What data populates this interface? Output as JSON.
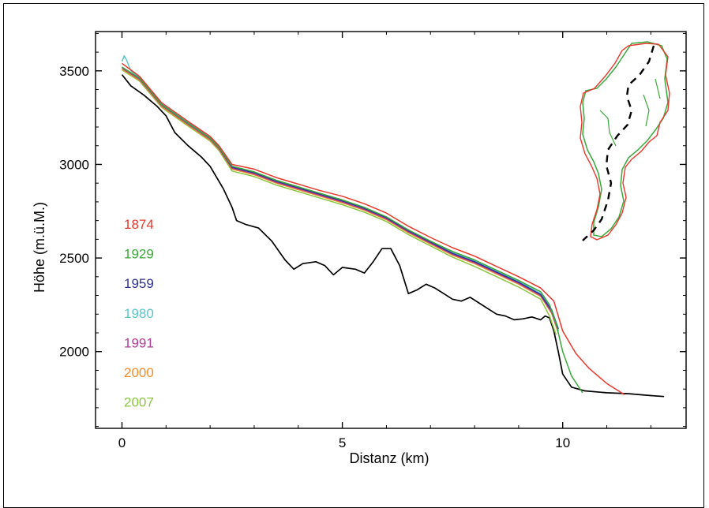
{
  "chart_data": {
    "type": "line",
    "title": "",
    "xlabel": "Distanz  (km)",
    "ylabel": "Höhe  (m.ü.M.)",
    "xlim": [
      -0.6,
      12.8
    ],
    "ylim": [
      1590,
      3710
    ],
    "xticks": [
      0,
      5,
      10
    ],
    "yticks": [
      2000,
      2500,
      3000,
      3500
    ],
    "grid": false,
    "legend_placement": "left",
    "series": [
      {
        "name": "1874",
        "color": "#e8372b",
        "x": [
          0,
          0.4,
          0.9,
          1.5,
          2.0,
          2.2,
          2.5,
          3.0,
          3.5,
          4.0,
          4.5,
          5.0,
          5.5,
          6.0,
          6.5,
          7.0,
          7.5,
          8.0,
          8.5,
          9.0,
          9.5,
          9.8,
          10.0,
          10.3,
          10.6,
          11.0,
          11.4
        ],
        "y": [
          3540,
          3470,
          3330,
          3230,
          3150,
          3100,
          3000,
          2975,
          2930,
          2895,
          2860,
          2830,
          2790,
          2740,
          2670,
          2610,
          2555,
          2510,
          2455,
          2400,
          2340,
          2270,
          2110,
          1990,
          1910,
          1830,
          1770
        ]
      },
      {
        "name": "1929",
        "color": "#3aa83a",
        "x": [
          0,
          0.4,
          0.9,
          1.5,
          2.0,
          2.2,
          2.5,
          3.0,
          3.5,
          4.0,
          4.5,
          5.0,
          5.5,
          6.0,
          6.5,
          7.0,
          7.5,
          8.0,
          8.5,
          9.0,
          9.5,
          9.7,
          9.85,
          10.0,
          10.2,
          10.45
        ],
        "y": [
          3520,
          3460,
          3320,
          3220,
          3140,
          3090,
          2990,
          2960,
          2915,
          2880,
          2845,
          2810,
          2770,
          2720,
          2650,
          2590,
          2535,
          2490,
          2435,
          2380,
          2320,
          2250,
          2150,
          2000,
          1870,
          1780
        ]
      },
      {
        "name": "1959",
        "color": "#2e3192",
        "x": [
          0,
          0.4,
          0.9,
          1.5,
          2.0,
          2.2,
          2.5,
          3.0,
          3.5,
          4.0,
          4.5,
          5.0,
          5.5,
          6.0,
          6.5,
          7.0,
          7.5,
          8.0,
          8.5,
          9.0,
          9.5,
          9.75,
          9.9
        ],
        "y": [
          3520,
          3460,
          3320,
          3220,
          3140,
          3090,
          2985,
          2955,
          2910,
          2875,
          2840,
          2805,
          2765,
          2715,
          2645,
          2585,
          2525,
          2480,
          2425,
          2370,
          2305,
          2220,
          2120
        ]
      },
      {
        "name": "1980",
        "color": "#5bc5c8",
        "x": [
          0,
          0.05,
          0.1,
          0.2,
          0.4,
          0.9,
          1.5,
          2.0,
          2.2,
          2.5,
          3.0,
          3.5,
          4.0,
          4.5,
          5.0,
          5.5,
          6.0,
          6.5,
          7.0,
          7.5,
          8.0,
          8.5,
          9.0,
          9.5,
          9.75,
          9.9
        ],
        "y": [
          3550,
          3580,
          3560,
          3500,
          3465,
          3325,
          3225,
          3145,
          3095,
          2990,
          2960,
          2915,
          2880,
          2845,
          2810,
          2770,
          2720,
          2650,
          2590,
          2530,
          2485,
          2430,
          2375,
          2310,
          2225,
          2125
        ]
      },
      {
        "name": "1991",
        "color": "#b23c96",
        "x": [
          0,
          0.4,
          0.9,
          1.5,
          2.0,
          2.2,
          2.5,
          3.0,
          3.5,
          4.0,
          4.5,
          5.0,
          5.5,
          6.0,
          6.5,
          7.0,
          7.5,
          8.0,
          8.5,
          9.0,
          9.5,
          9.75,
          9.9
        ],
        "y": [
          3515,
          3455,
          3315,
          3215,
          3135,
          3085,
          2980,
          2950,
          2905,
          2870,
          2835,
          2800,
          2760,
          2710,
          2640,
          2580,
          2520,
          2475,
          2420,
          2365,
          2300,
          2210,
          2110
        ]
      },
      {
        "name": "2000",
        "color": "#f08c2a",
        "x": [
          0,
          0.4,
          0.9,
          1.5,
          2.0,
          2.2,
          2.5,
          3.0,
          3.5,
          4.0,
          4.5,
          5.0,
          5.5,
          6.0,
          6.5,
          7.0,
          7.5,
          8.0,
          8.5,
          9.0,
          9.5,
          9.75,
          9.9
        ],
        "y": [
          3510,
          3450,
          3310,
          3210,
          3130,
          3080,
          2975,
          2945,
          2900,
          2865,
          2830,
          2795,
          2755,
          2705,
          2635,
          2575,
          2515,
          2470,
          2415,
          2360,
          2295,
          2205,
          2100
        ]
      },
      {
        "name": "2007",
        "color": "#8cc63f",
        "x": [
          0,
          0.4,
          0.9,
          1.5,
          2.0,
          2.2,
          2.5,
          3.0,
          3.5,
          4.0,
          4.5,
          5.0,
          5.5,
          6.0,
          6.5,
          7.0,
          7.5,
          8.0,
          8.5,
          9.0,
          9.5,
          9.7,
          9.85
        ],
        "y": [
          3505,
          3445,
          3305,
          3205,
          3125,
          3075,
          2965,
          2935,
          2890,
          2855,
          2820,
          2785,
          2745,
          2695,
          2625,
          2565,
          2505,
          2455,
          2400,
          2345,
          2280,
          2190,
          2090
        ]
      },
      {
        "color": "#000000",
        "x": [
          0,
          0.2,
          0.5,
          0.8,
          1.0,
          1.2,
          1.5,
          1.8,
          2.0,
          2.3,
          2.5,
          2.6,
          2.8,
          3.1,
          3.4,
          3.7,
          3.9,
          4.1,
          4.4,
          4.6,
          4.8,
          5.0,
          5.3,
          5.5,
          5.7,
          5.9,
          6.1,
          6.3,
          6.5,
          6.7,
          6.9,
          7.1,
          7.3,
          7.5,
          7.7,
          7.9,
          8.1,
          8.3,
          8.5,
          8.7,
          8.9,
          9.1,
          9.3,
          9.5,
          9.6,
          9.7,
          9.8,
          9.9,
          10.0,
          10.2,
          10.5,
          11.0,
          11.5,
          12.0,
          12.3
        ],
        "y": [
          3480,
          3420,
          3370,
          3310,
          3260,
          3170,
          3100,
          3040,
          2990,
          2870,
          2770,
          2700,
          2680,
          2660,
          2590,
          2490,
          2440,
          2470,
          2480,
          2460,
          2410,
          2450,
          2440,
          2420,
          2480,
          2550,
          2550,
          2460,
          2310,
          2330,
          2360,
          2340,
          2310,
          2280,
          2270,
          2290,
          2260,
          2230,
          2200,
          2190,
          2170,
          2175,
          2185,
          2170,
          2190,
          2180,
          2110,
          2000,
          1880,
          1810,
          1790,
          1780,
          1775,
          1765,
          1760
        ]
      }
    ]
  }
}
